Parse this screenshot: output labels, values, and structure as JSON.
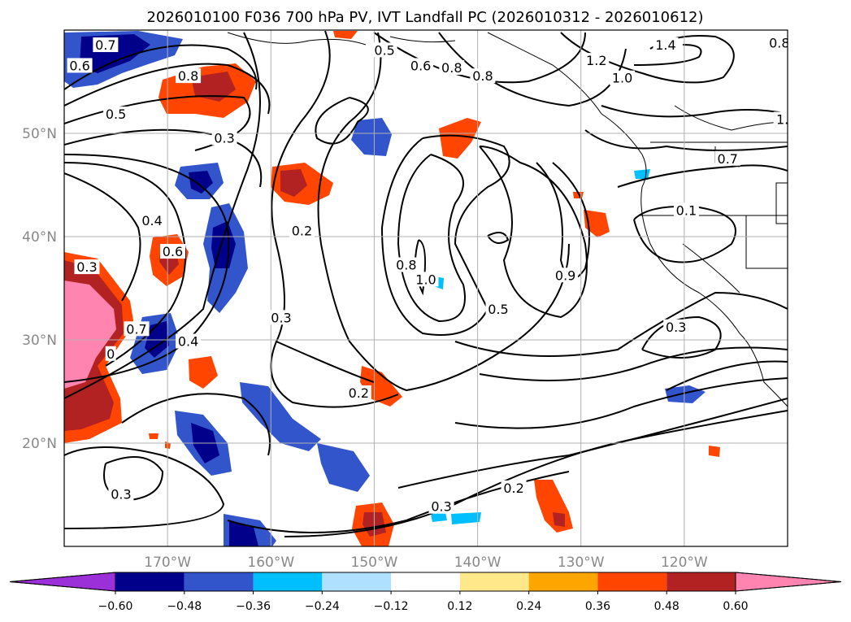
{
  "chart_data": {
    "type": "heatmap",
    "title": "2026010100 F036 700 hPa PV, IVT Landfall PC (2026010312 - 2026010612)",
    "x_ticks": [
      {
        "value": -170,
        "label": "170°W"
      },
      {
        "value": -160,
        "label": "160°W"
      },
      {
        "value": -150,
        "label": "150°W"
      },
      {
        "value": -140,
        "label": "140°W"
      },
      {
        "value": -130,
        "label": "130°W"
      },
      {
        "value": -120,
        "label": "120°W"
      }
    ],
    "y_ticks": [
      {
        "value": 20,
        "label": "20°N"
      },
      {
        "value": 30,
        "label": "30°N"
      },
      {
        "value": 40,
        "label": "40°N"
      },
      {
        "value": 50,
        "label": "50°N"
      }
    ],
    "lon_range": [
      -180,
      -110
    ],
    "lat_range": [
      10,
      60
    ],
    "colorbar": {
      "boundaries": [
        -0.6,
        -0.48,
        -0.36,
        -0.24,
        -0.12,
        0.12,
        0.24,
        0.36,
        0.48,
        0.6
      ],
      "tick_labels": [
        "−0.60",
        "−0.48",
        "−0.36",
        "−0.24",
        "−0.12",
        "0.12",
        "0.24",
        "0.36",
        "0.48",
        "0.60"
      ],
      "colors": [
        "#9b30d9",
        "#00008b",
        "#3355cc",
        "#00bfff",
        "#b0e0ff",
        "#ffffff",
        "#ffe88a",
        "#ffa500",
        "#ff4500",
        "#b22222",
        "#ff85b0"
      ],
      "extend": "both"
    },
    "contour_labels": [
      {
        "text": "0.6",
        "lon": -178.5,
        "lat": 56.5
      },
      {
        "text": "0.7",
        "lon": -176.0,
        "lat": 58.5
      },
      {
        "text": "0.8",
        "lon": -168.0,
        "lat": 55.5
      },
      {
        "text": "0.5",
        "lon": -175.0,
        "lat": 51.8
      },
      {
        "text": "0.3",
        "lon": -164.5,
        "lat": 49.5
      },
      {
        "text": "0.5",
        "lon": -149.0,
        "lat": 58.0
      },
      {
        "text": "0.6",
        "lon": -145.5,
        "lat": 56.5
      },
      {
        "text": "0.8",
        "lon": -142.5,
        "lat": 56.3
      },
      {
        "text": "0.8",
        "lon": -139.5,
        "lat": 55.5
      },
      {
        "text": "1.2",
        "lon": -128.5,
        "lat": 57.0
      },
      {
        "text": "1.0",
        "lon": -126.0,
        "lat": 55.3
      },
      {
        "text": "1.4",
        "lon": -121.8,
        "lat": 58.5
      },
      {
        "text": "0.8",
        "lon": -110.8,
        "lat": 58.7
      },
      {
        "text": "1.",
        "lon": -110.5,
        "lat": 51.3
      },
      {
        "text": "0.7",
        "lon": -115.8,
        "lat": 47.5
      },
      {
        "text": "0.1",
        "lon": -119.8,
        "lat": 42.5
      },
      {
        "text": "0.4",
        "lon": -171.5,
        "lat": 41.5
      },
      {
        "text": "0.6",
        "lon": -169.5,
        "lat": 38.5
      },
      {
        "text": "0.2",
        "lon": -157.0,
        "lat": 40.5
      },
      {
        "text": "0.3",
        "lon": -177.8,
        "lat": 37.0
      },
      {
        "text": "0.8",
        "lon": -146.9,
        "lat": 37.2
      },
      {
        "text": "1.0",
        "lon": -145.0,
        "lat": 35.8
      },
      {
        "text": "0.9",
        "lon": -131.5,
        "lat": 36.2
      },
      {
        "text": "0.5",
        "lon": -138.0,
        "lat": 32.9
      },
      {
        "text": "0.3",
        "lon": -159.0,
        "lat": 32.1
      },
      {
        "text": "0.7",
        "lon": -173.0,
        "lat": 31.0
      },
      {
        "text": "0.4",
        "lon": -168.0,
        "lat": 29.8
      },
      {
        "text": "0",
        "lon": -175.5,
        "lat": 28.6
      },
      {
        "text": "0.3",
        "lon": -120.8,
        "lat": 31.2
      },
      {
        "text": "0.2",
        "lon": -151.5,
        "lat": 24.8
      },
      {
        "text": "0.3",
        "lon": -174.5,
        "lat": 15.0
      },
      {
        "text": "0.3",
        "lon": -143.5,
        "lat": 13.8
      },
      {
        "text": "0.2",
        "lon": -136.5,
        "lat": 15.6
      }
    ]
  }
}
